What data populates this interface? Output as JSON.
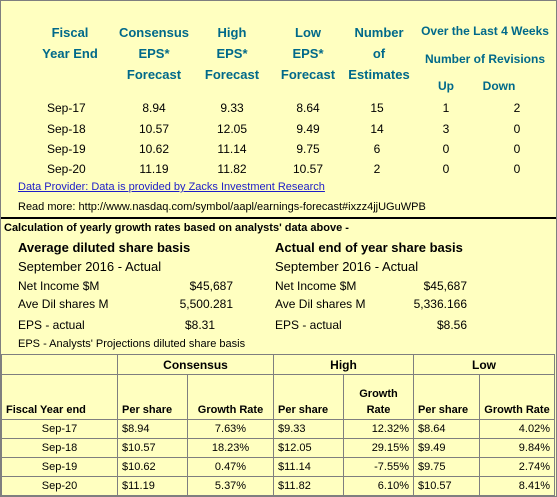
{
  "forecast_table": {
    "headers": {
      "fiscal": [
        "Fiscal",
        "Year End"
      ],
      "consensus": [
        "Consensus",
        "EPS*",
        "Forecast"
      ],
      "high": [
        "High",
        "EPS*",
        "Forecast"
      ],
      "low": [
        "Low",
        "EPS*",
        "Forecast"
      ],
      "number": [
        "Number",
        "of",
        "Estimates"
      ],
      "over_last": "Over the Last 4 Weeks",
      "num_revisions": "Number of Revisions",
      "up": "Up",
      "down": "Down"
    },
    "rows": [
      {
        "year": "Sep-17",
        "consensus": "8.94",
        "high": "9.33",
        "low": "8.64",
        "estimates": "15",
        "up": "1",
        "down": "2"
      },
      {
        "year": "Sep-18",
        "consensus": "10.57",
        "high": "12.05",
        "low": "9.49",
        "estimates": "14",
        "up": "3",
        "down": "0"
      },
      {
        "year": "Sep-19",
        "consensus": "10.62",
        "high": "11.14",
        "low": "9.75",
        "estimates": "6",
        "up": "0",
        "down": "0"
      },
      {
        "year": "Sep-20",
        "consensus": "11.19",
        "high": "11.82",
        "low": "10.57",
        "estimates": "2",
        "up": "0",
        "down": "0"
      }
    ]
  },
  "provider_link": "Data Provider: Data is provided by Zacks Investment Research",
  "read_more": "Read more: http://www.nasdaq.com/symbol/aapl/earnings-forecast#ixzz4jjUGuWPB",
  "calc_title": "Calculation of yearly growth rates based on analysts' data above -",
  "average": {
    "title": "Average diluted share basis",
    "subtitle": "September 2016 - Actual",
    "items": [
      {
        "label": "Net Income $M",
        "value": "$45,687"
      },
      {
        "label": "Ave Dil shares M",
        "value": "5,500.281"
      },
      {
        "label": "EPS - actual",
        "value": "$8.31"
      }
    ]
  },
  "actual": {
    "title": "Actual end of year share basis",
    "subtitle": "September 2016 - Actual",
    "items": [
      {
        "label": "Net Income $M",
        "value": "$45,687"
      },
      {
        "label": "Ave Dil shares M",
        "value": "5,336.166"
      },
      {
        "label": "EPS - actual",
        "value": "$8.56"
      }
    ]
  },
  "projections": {
    "title": "EPS - Analysts' Projections diluted share basis",
    "groups": [
      "Consensus",
      "High",
      "Low"
    ],
    "col_fiscal": "Fiscal Year end",
    "col_per_share": "Per share",
    "col_growth": "Growth Rate",
    "col_growth_high": [
      "Growth",
      "Rate"
    ],
    "rows": [
      {
        "year": "Sep-17",
        "c_ps": "$8.94",
        "c_gr": "7.63%",
        "h_ps": "$9.33",
        "h_gr": "12.32%",
        "l_ps": "$8.64",
        "l_gr": "4.02%"
      },
      {
        "year": "Sep-18",
        "c_ps": "$10.57",
        "c_gr": "18.23%",
        "h_ps": "$12.05",
        "h_gr": "29.15%",
        "l_ps": "$9.49",
        "l_gr": "9.84%"
      },
      {
        "year": "Sep-19",
        "c_ps": "$10.62",
        "c_gr": "0.47%",
        "h_ps": "$11.14",
        "h_gr": "-7.55%",
        "l_ps": "$9.75",
        "l_gr": "2.74%"
      },
      {
        "year": "Sep-20",
        "c_ps": "$11.19",
        "c_gr": "5.37%",
        "h_ps": "$11.82",
        "h_gr": "6.10%",
        "l_ps": "$10.57",
        "l_gr": "8.41%"
      }
    ]
  }
}
